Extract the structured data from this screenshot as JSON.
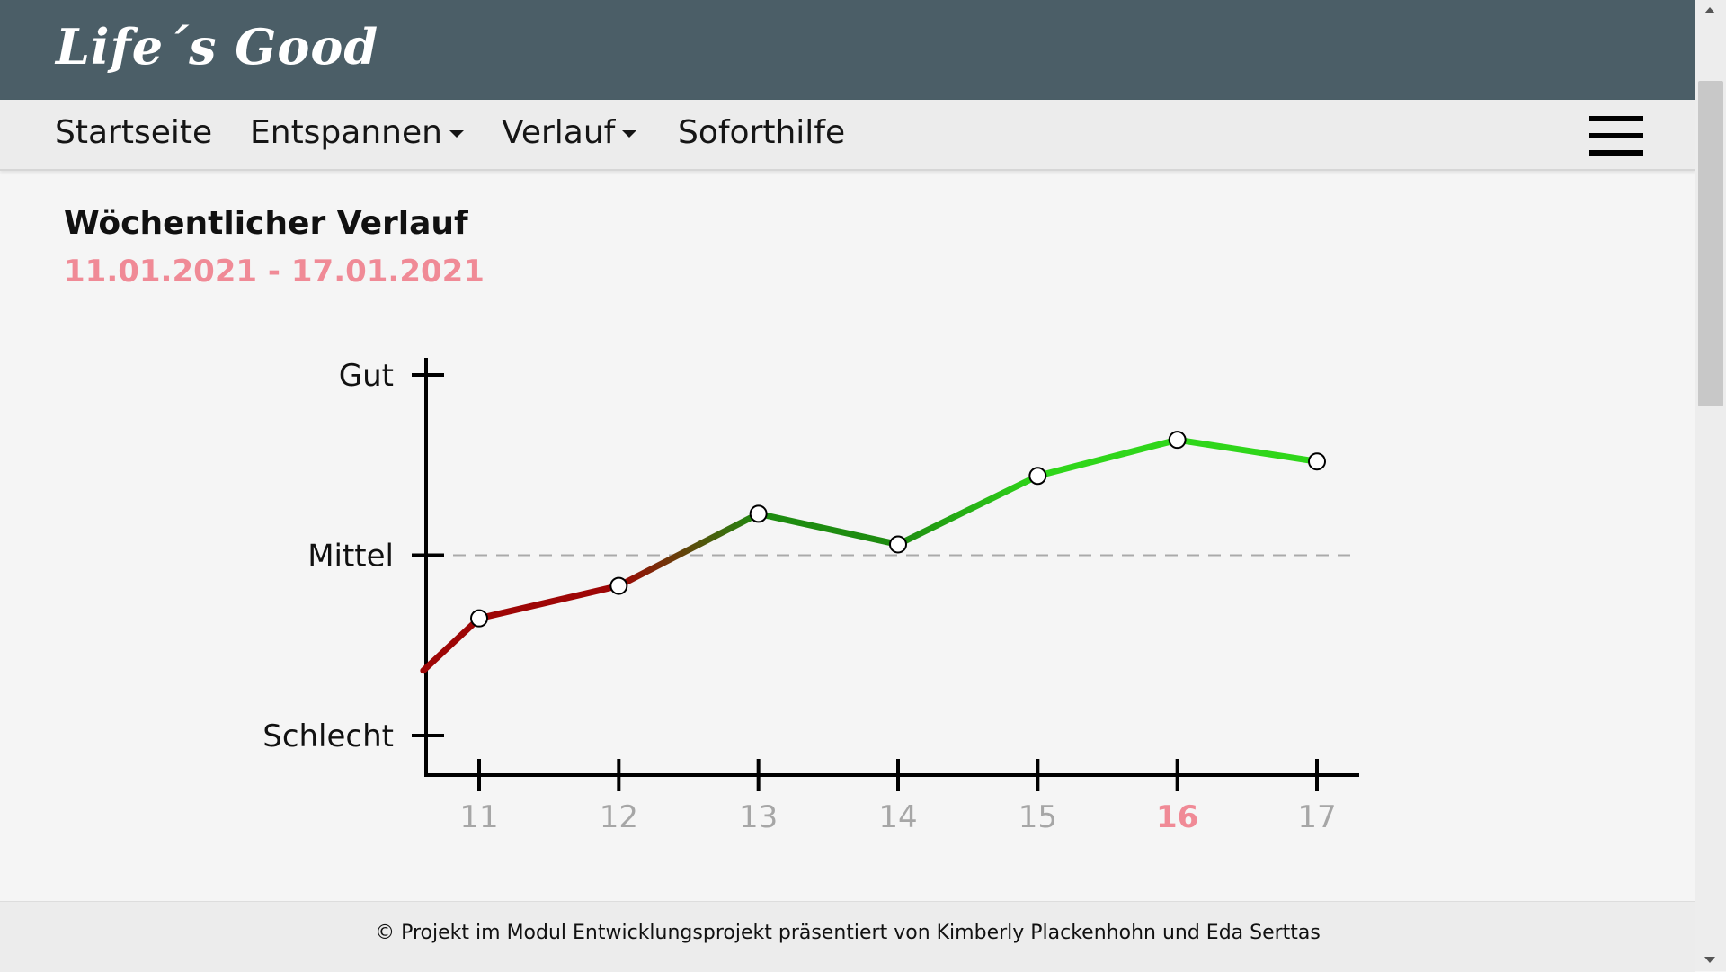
{
  "header": {
    "logo": "Life´s Good"
  },
  "nav": {
    "items": [
      {
        "label": "Startseite",
        "dropdown": false
      },
      {
        "label": "Entspannen",
        "dropdown": true
      },
      {
        "label": "Verlauf",
        "dropdown": true
      },
      {
        "label": "Soforthilfe",
        "dropdown": false
      }
    ],
    "menu_icon": "hamburger-menu-icon"
  },
  "main": {
    "title": "Wöchentlicher Verlauf",
    "date_range": "11.01.2021 - 17.01.2021"
  },
  "chart_data": {
    "type": "line",
    "title": "",
    "xlabel": "",
    "ylabel": "",
    "x": [
      11,
      12,
      13,
      14,
      15,
      16,
      17
    ],
    "y_labels": [
      "Gut",
      "Mittel",
      "Schlecht"
    ],
    "y_scale": {
      "Schlecht": 0,
      "Mittel": 1,
      "Gut": 2
    },
    "ylim": [
      0,
      2
    ],
    "series": [
      {
        "values": [
          0.65,
          0.83,
          1.23,
          1.06,
          1.44,
          1.64,
          1.52
        ]
      }
    ],
    "line_start": {
      "x": 10.6,
      "y": 0.36
    },
    "highlight_x": 16,
    "reference_line": 1,
    "colors": {
      "below_reference": "#9e0606",
      "above_reference": "#1e8c10",
      "high": "#2fd61a",
      "highlight": "#f08a96",
      "tick_label": "#a6a6a6"
    },
    "grid": false,
    "legend": "none"
  },
  "footer": {
    "text": "© Projekt im Modul Entwicklungsprojekt präsentiert von Kimberly Plackenhohn und Eda Serttas"
  }
}
